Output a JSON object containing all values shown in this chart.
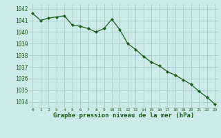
{
  "hours": [
    0,
    1,
    2,
    3,
    4,
    5,
    6,
    7,
    8,
    9,
    10,
    11,
    12,
    13,
    14,
    15,
    16,
    17,
    18,
    19,
    20,
    21,
    22,
    23
  ],
  "pressure": [
    1041.6,
    1041.0,
    1041.2,
    1041.3,
    1041.4,
    1040.6,
    1040.5,
    1040.3,
    1040.0,
    1040.3,
    1041.1,
    1040.2,
    1039.0,
    1038.5,
    1037.9,
    1037.4,
    1037.1,
    1036.6,
    1036.3,
    1035.9,
    1035.5,
    1034.9,
    1034.4,
    1033.8
  ],
  "line_color": "#1a5c1a",
  "marker_color": "#1a5c1a",
  "bg_color": "#cceae7",
  "grid_color": "#aacccc",
  "xlabel": "Graphe pression niveau de la mer (hPa)",
  "xlabel_color": "#1a5c1a",
  "tick_color": "#1a5c1a",
  "ylim_min": 1033.5,
  "ylim_max": 1042.4,
  "yticks": [
    1034,
    1035,
    1036,
    1037,
    1038,
    1039,
    1040,
    1041,
    1042
  ]
}
